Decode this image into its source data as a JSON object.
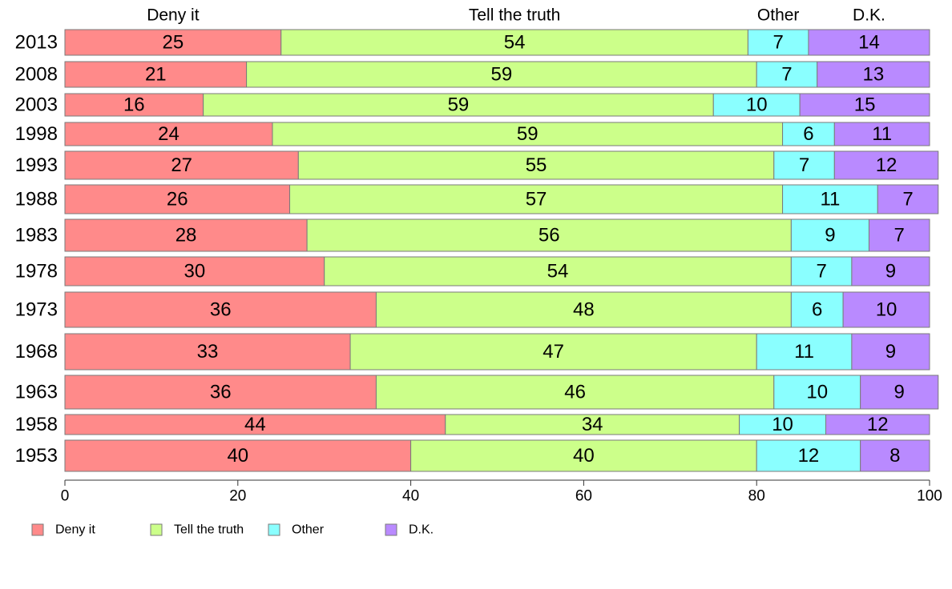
{
  "chart_data": {
    "type": "bar",
    "orientation": "horizontal",
    "stacked": true,
    "categories": [
      "2013",
      "2008",
      "2003",
      "1998",
      "1993",
      "1988",
      "1983",
      "1978",
      "1973",
      "1968",
      "1963",
      "1958",
      "1953"
    ],
    "series": [
      {
        "name": "Deny it",
        "color": "#ff8a8a",
        "values": [
          25,
          21,
          16,
          24,
          27,
          26,
          28,
          30,
          36,
          33,
          36,
          44,
          40
        ]
      },
      {
        "name": "Tell the truth",
        "color": "#ccff8a",
        "values": [
          54,
          59,
          59,
          59,
          55,
          57,
          56,
          54,
          48,
          47,
          46,
          34,
          40
        ]
      },
      {
        "name": "Other",
        "color": "#8affff",
        "values": [
          7,
          7,
          10,
          6,
          7,
          11,
          9,
          7,
          6,
          11,
          10,
          10,
          12
        ]
      },
      {
        "name": "D.K.",
        "color": "#b98aff",
        "values": [
          14,
          13,
          15,
          11,
          12,
          7,
          7,
          9,
          10,
          9,
          9,
          12,
          8
        ]
      }
    ],
    "header_labels": [
      "Deny it",
      "Tell the truth",
      "Other",
      "D.K."
    ],
    "xlim": [
      0,
      100
    ],
    "x_ticks": [
      0,
      20,
      40,
      60,
      80,
      100
    ],
    "legend_position": "bottom-left",
    "grid": false
  }
}
